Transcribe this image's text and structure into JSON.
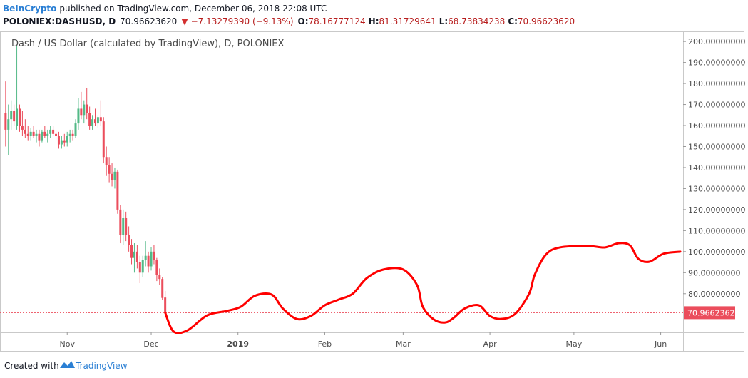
{
  "header": {
    "brand": "BeInCrypto",
    "published": "published on TradingView.com, December 06, 2018 22:08 UTC",
    "symbol": "POLONIEX:DASHUSD, D",
    "last": "70.96623620",
    "change": "−7.13279390 (−9.13%)",
    "open_label": "O:",
    "open": "78.16777124",
    "high_label": "H:",
    "high": "81.31729641",
    "low_label": "L:",
    "low": "68.73834238",
    "close_label": "C:",
    "close": "70.96623620"
  },
  "footer": {
    "created": "Created with",
    "logo": "TradingView"
  },
  "chart_data": {
    "type": "candlestick",
    "title": "Dash / US Dollar (calculated by TradingView), D, POLONIEX",
    "up_color": "#53b987",
    "down_color": "#eb4d5c",
    "xlim": [
      "2018-10-08",
      "2019-06-09"
    ],
    "xticks": [
      {
        "value": "2018-11-01",
        "label": "Nov"
      },
      {
        "value": "2018-12-01",
        "label": "Dec"
      },
      {
        "value": "2019-01-01",
        "label": "2019"
      },
      {
        "value": "2019-02-01",
        "label": "Feb"
      },
      {
        "value": "2019-03-01",
        "label": "Mar"
      },
      {
        "value": "2019-04-01",
        "label": "Apr"
      },
      {
        "value": "2019-05-01",
        "label": "May"
      },
      {
        "value": "2019-06-01",
        "label": "Jun"
      }
    ],
    "ylim": [
      61.6,
      204.8
    ],
    "yticks": [
      {
        "value": 80,
        "label": "80.00000000"
      },
      {
        "value": 90,
        "label": "90.00000000"
      },
      {
        "value": 100,
        "label": "100.00000000"
      },
      {
        "value": 110,
        "label": "110.00000000"
      },
      {
        "value": 120,
        "label": "120.00000000"
      },
      {
        "value": 130,
        "label": "130.00000000"
      },
      {
        "value": 140,
        "label": "140.00000000"
      },
      {
        "value": 150,
        "label": "150.00000000"
      },
      {
        "value": 160,
        "label": "160.00000000"
      },
      {
        "value": 170,
        "label": "170.00000000"
      },
      {
        "value": 180,
        "label": "180.00000000"
      },
      {
        "value": 190,
        "label": "190.00000000"
      },
      {
        "value": 200,
        "label": "200.00000000"
      }
    ],
    "price_line": {
      "value": 70.9662362,
      "label": "70.96623620",
      "color": "#eb4d5c"
    },
    "x": [
      "2018-10-10",
      "2018-10-11",
      "2018-10-12",
      "2018-10-13",
      "2018-10-14",
      "2018-10-15",
      "2018-10-16",
      "2018-10-17",
      "2018-10-18",
      "2018-10-19",
      "2018-10-20",
      "2018-10-21",
      "2018-10-22",
      "2018-10-23",
      "2018-10-24",
      "2018-10-25",
      "2018-10-26",
      "2018-10-27",
      "2018-10-28",
      "2018-10-29",
      "2018-10-30",
      "2018-10-31",
      "2018-11-01",
      "2018-11-02",
      "2018-11-03",
      "2018-11-04",
      "2018-11-05",
      "2018-11-06",
      "2018-11-07",
      "2018-11-08",
      "2018-11-09",
      "2018-11-10",
      "2018-11-11",
      "2018-11-12",
      "2018-11-13",
      "2018-11-14",
      "2018-11-15",
      "2018-11-16",
      "2018-11-17",
      "2018-11-18",
      "2018-11-19",
      "2018-11-20",
      "2018-11-21",
      "2018-11-22",
      "2018-11-23",
      "2018-11-24",
      "2018-11-25",
      "2018-11-26",
      "2018-11-27",
      "2018-11-28",
      "2018-11-29",
      "2018-11-30",
      "2018-12-01",
      "2018-12-02",
      "2018-12-03",
      "2018-12-04",
      "2018-12-05",
      "2018-12-06"
    ],
    "open": [
      166,
      158,
      163,
      167,
      160,
      168,
      160,
      158,
      156,
      155,
      157,
      155,
      156,
      153,
      157,
      155,
      156,
      158,
      156,
      155,
      151,
      153,
      152,
      155,
      156,
      155,
      161,
      168,
      165,
      170,
      166,
      160,
      163,
      161,
      164,
      162,
      145,
      141,
      137,
      134,
      138,
      120,
      108,
      116,
      108,
      103,
      97,
      100,
      95,
      90,
      96,
      98,
      93,
      100,
      96,
      89,
      87,
      78.16777124
    ],
    "high": [
      181,
      170,
      172,
      170,
      198,
      170,
      167,
      163,
      160,
      159,
      160,
      158,
      158,
      158,
      160,
      158,
      160,
      160,
      158,
      157,
      155,
      156,
      157,
      158,
      158,
      163,
      173,
      176,
      172,
      178,
      169,
      165,
      168,
      165,
      172,
      164,
      150,
      145,
      142,
      140,
      139,
      122,
      120,
      119,
      112,
      106,
      104,
      103,
      98,
      98,
      105,
      100,
      102,
      103,
      97,
      92,
      88,
      81.31729641
    ],
    "low": [
      150,
      146,
      158,
      160,
      158,
      157,
      155,
      154,
      153,
      153,
      154,
      152,
      150,
      152,
      154,
      152,
      154,
      155,
      153,
      149,
      149,
      150,
      150,
      152,
      153,
      154,
      158,
      163,
      161,
      163,
      158,
      158,
      160,
      159,
      160,
      142,
      136,
      133,
      131,
      130,
      118,
      104,
      103,
      105,
      100,
      94,
      90,
      92,
      85,
      88,
      93,
      90,
      91,
      94,
      86,
      84,
      77,
      68.73834238
    ],
    "close": [
      158,
      163,
      167,
      162,
      168,
      160,
      158,
      156,
      155,
      157,
      155,
      156,
      153,
      157,
      155,
      156,
      158,
      156,
      155,
      151,
      153,
      152,
      155,
      156,
      155,
      161,
      168,
      165,
      170,
      166,
      160,
      163,
      161,
      164,
      162,
      145,
      141,
      137,
      134,
      138,
      120,
      108,
      116,
      108,
      103,
      97,
      100,
      95,
      90,
      96,
      98,
      93,
      100,
      96,
      89,
      87,
      78,
      70.9662362
    ],
    "drawing": {
      "color": "#ff0000",
      "x": [
        "2018-12-06",
        "2018-12-09",
        "2018-12-14",
        "2018-12-21",
        "2018-12-28",
        "2019-01-02",
        "2019-01-07",
        "2019-01-13",
        "2019-01-17",
        "2019-01-22",
        "2019-01-27",
        "2019-02-01",
        "2019-02-06",
        "2019-02-11",
        "2019-02-16",
        "2019-02-22",
        "2019-03-01",
        "2019-03-06",
        "2019-03-08",
        "2019-03-12",
        "2019-03-16",
        "2019-03-19",
        "2019-03-23",
        "2019-03-28",
        "2019-04-01",
        "2019-04-05",
        "2019-04-10",
        "2019-04-15",
        "2019-04-17",
        "2019-04-21",
        "2019-04-26",
        "2019-05-06",
        "2019-05-12",
        "2019-05-17",
        "2019-05-21",
        "2019-05-24",
        "2019-05-28",
        "2019-06-02",
        "2019-06-08"
      ],
      "values": [
        71,
        62,
        62.6,
        69.7,
        71.8,
        73.8,
        79,
        79.6,
        73,
        68,
        69.4,
        74.5,
        77.2,
        80,
        87.4,
        91.5,
        91.5,
        84,
        73.8,
        67.7,
        66.3,
        68.5,
        73,
        74.5,
        69.4,
        68,
        70.4,
        80,
        89,
        98.6,
        102,
        102.7,
        102,
        104,
        103,
        96.6,
        95.2,
        99,
        100
      ]
    }
  }
}
